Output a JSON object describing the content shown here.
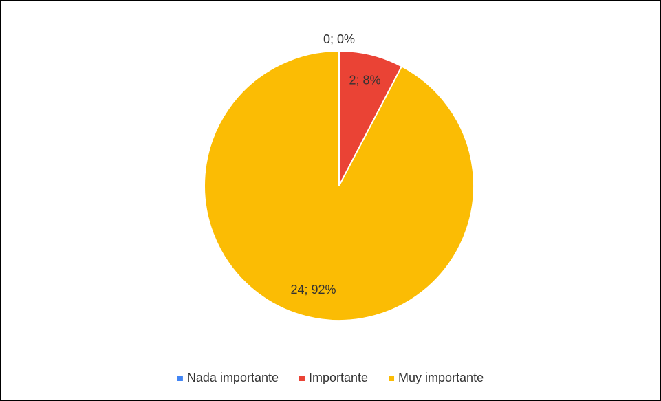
{
  "chart_data": {
    "type": "pie",
    "categories": [
      "Nada importante",
      "Importante",
      "Muy importante"
    ],
    "values": [
      0,
      2,
      24
    ],
    "value_labels": [
      "0; 0%",
      "2; 8%",
      "24; 92%"
    ],
    "colors": [
      "#4285f4",
      "#ea4335",
      "#fbbc04"
    ],
    "legend": "bottom"
  }
}
